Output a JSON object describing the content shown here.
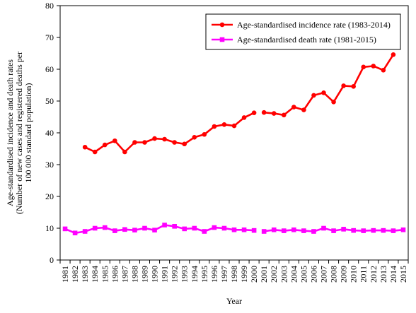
{
  "chart_data": {
    "type": "line",
    "title": "",
    "xlabel": "Year",
    "ylabel": "Age-standardised incidence and death rates\n(Number of new cases and registered deaths per\n100 000 standard population)",
    "ylim": [
      0,
      80
    ],
    "yticks": [
      0,
      10,
      20,
      30,
      40,
      50,
      60,
      70,
      80
    ],
    "categories": [
      "1981",
      "1982",
      "1983",
      "1984",
      "1985",
      "1986",
      "1987",
      "1988",
      "1989",
      "1990",
      "1991",
      "1992",
      "1993",
      "1994",
      "1995",
      "1996",
      "1997",
      "1998",
      "1999",
      "2000",
      "2001",
      "2002",
      "2003",
      "2004",
      "2005",
      "2006",
      "2007",
      "2008",
      "2009",
      "2010",
      "2011",
      "2012",
      "2013",
      "2014",
      "2015"
    ],
    "grid": false,
    "legend_position": "top-right",
    "series": [
      {
        "name": "Age-standardised incidence rate (1983-2014)",
        "color": "#ff0000",
        "marker": "circle",
        "segments": [
          [
            [
              1983,
              35.5
            ],
            [
              1984,
              34.0
            ],
            [
              1985,
              36.2
            ],
            [
              1986,
              37.5
            ],
            [
              1987,
              34.0
            ],
            [
              1988,
              37.0
            ],
            [
              1989,
              37.0
            ],
            [
              1990,
              38.2
            ],
            [
              1991,
              38.0
            ],
            [
              1992,
              37.0
            ],
            [
              1993,
              36.5
            ],
            [
              1994,
              38.6
            ],
            [
              1995,
              39.5
            ],
            [
              1996,
              42.0
            ],
            [
              1997,
              42.6
            ],
            [
              1998,
              42.2
            ],
            [
              1999,
              44.8
            ],
            [
              2000,
              46.3
            ]
          ],
          [
            [
              2001,
              46.4
            ],
            [
              2002,
              46.1
            ],
            [
              2003,
              45.6
            ],
            [
              2004,
              48.1
            ],
            [
              2005,
              47.2
            ],
            [
              2006,
              51.8
            ],
            [
              2007,
              52.6
            ],
            [
              2008,
              49.7
            ],
            [
              2009,
              54.8
            ],
            [
              2010,
              54.6
            ],
            [
              2011,
              60.7
            ],
            [
              2012,
              61.0
            ],
            [
              2013,
              59.7
            ],
            [
              2014,
              64.6
            ]
          ]
        ]
      },
      {
        "name": "Age-standardised death rate (1981-2015)",
        "color": "#ff00ff",
        "marker": "square",
        "segments": [
          [
            [
              1981,
              9.8
            ],
            [
              1982,
              8.5
            ],
            [
              1983,
              9.0
            ],
            [
              1984,
              10.0
            ],
            [
              1985,
              10.2
            ],
            [
              1986,
              9.2
            ],
            [
              1987,
              9.6
            ],
            [
              1988,
              9.4
            ],
            [
              1989,
              10.0
            ],
            [
              1990,
              9.4
            ],
            [
              1991,
              11.0
            ],
            [
              1992,
              10.6
            ],
            [
              1993,
              9.8
            ],
            [
              1994,
              10.0
            ],
            [
              1995,
              9.0
            ],
            [
              1996,
              10.2
            ],
            [
              1997,
              10.0
            ],
            [
              1998,
              9.5
            ],
            [
              1999,
              9.5
            ],
            [
              2000,
              9.3
            ]
          ],
          [
            [
              2001,
              9.0
            ],
            [
              2002,
              9.5
            ],
            [
              2003,
              9.2
            ],
            [
              2004,
              9.5
            ],
            [
              2005,
              9.2
            ],
            [
              2006,
              9.0
            ],
            [
              2007,
              10.0
            ],
            [
              2008,
              9.2
            ],
            [
              2009,
              9.7
            ],
            [
              2010,
              9.3
            ],
            [
              2011,
              9.2
            ],
            [
              2012,
              9.3
            ],
            [
              2013,
              9.3
            ],
            [
              2014,
              9.2
            ],
            [
              2015,
              9.5
            ]
          ]
        ]
      }
    ]
  }
}
